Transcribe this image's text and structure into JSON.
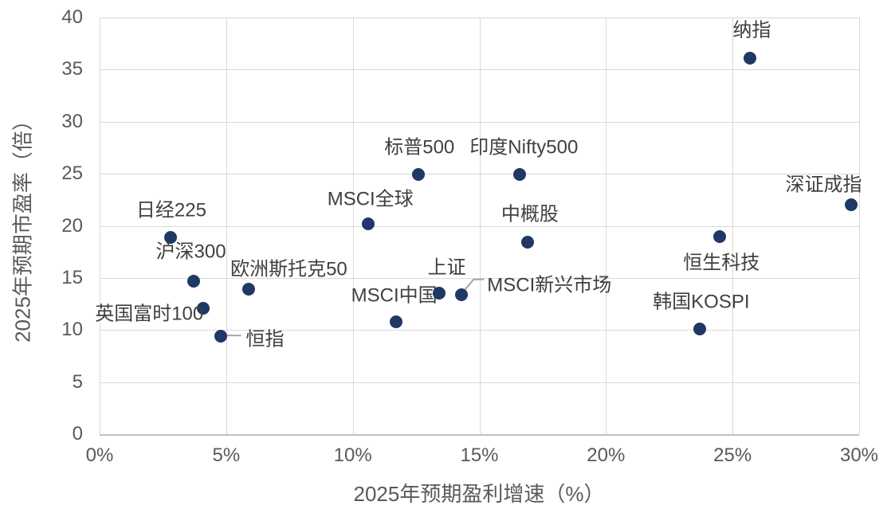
{
  "chart_data": {
    "type": "scatter",
    "title": "",
    "xlabel": "2025年预期盈利增速（%）",
    "ylabel": "2025年预期市盈率（倍）",
    "xlim": [
      0,
      30
    ],
    "ylim": [
      0,
      40
    ],
    "grid": true,
    "legend_position": "none",
    "marker_color": "#1f3864",
    "label_color": "#404040",
    "tick_color": "#595959",
    "grid_color": "#d9d9d9",
    "axis_line_color": "#bfbfbf",
    "leader_line_color": "#a6a6a6",
    "x_ticks": [
      {
        "v": 0,
        "label": "0%"
      },
      {
        "v": 5,
        "label": "5%"
      },
      {
        "v": 10,
        "label": "10%"
      },
      {
        "v": 15,
        "label": "15%"
      },
      {
        "v": 20,
        "label": "20%"
      },
      {
        "v": 25,
        "label": "25%"
      },
      {
        "v": 30,
        "label": "30%"
      }
    ],
    "y_ticks": [
      {
        "v": 0,
        "label": "0"
      },
      {
        "v": 5,
        "label": "5"
      },
      {
        "v": 10,
        "label": "10"
      },
      {
        "v": 15,
        "label": "15"
      },
      {
        "v": 20,
        "label": "20"
      },
      {
        "v": 25,
        "label": "25"
      },
      {
        "v": 30,
        "label": "30"
      },
      {
        "v": 35,
        "label": "35"
      },
      {
        "v": 40,
        "label": "40"
      }
    ],
    "points": [
      {
        "name": "日经225",
        "x": 2.8,
        "y": 18.9,
        "label_offset": [
          1,
          -37
        ]
      },
      {
        "name": "沪深300",
        "x": 3.7,
        "y": 14.7,
        "label_offset": [
          -3,
          -40
        ]
      },
      {
        "name": "英国富时100",
        "x": 4.1,
        "y": 12.1,
        "label_offset": [
          -68,
          4
        ]
      },
      {
        "name": "恒指",
        "x": 4.8,
        "y": 9.4,
        "label_offset": [
          55,
          1
        ],
        "leader": [
          [
            6,
            -1
          ],
          [
            25,
            -1
          ]
        ]
      },
      {
        "name": "欧洲斯托克50",
        "x": 5.9,
        "y": 13.9,
        "label_offset": [
          50,
          -28
        ]
      },
      {
        "name": "MSCI全球",
        "x": 10.6,
        "y": 20.2,
        "label_offset": [
          3,
          -34
        ]
      },
      {
        "name": "MSCI中国",
        "x": 11.7,
        "y": 10.8,
        "label_offset": [
          -2,
          -36
        ]
      },
      {
        "name": "标普500",
        "x": 12.6,
        "y": 24.9,
        "label_offset": [
          1,
          -37
        ]
      },
      {
        "name": "上证",
        "x": 13.4,
        "y": 13.5,
        "label_offset": [
          10,
          -35
        ]
      },
      {
        "name": "MSCI新兴市场",
        "x": 14.3,
        "y": 13.4,
        "label_offset": [
          110,
          -15
        ],
        "leader": [
          [
            4,
            -6
          ],
          [
            15,
            -19
          ],
          [
            28,
            -19
          ]
        ]
      },
      {
        "name": "印度Nifty500",
        "x": 16.6,
        "y": 24.9,
        "label_offset": [
          5,
          -37
        ]
      },
      {
        "name": "中概股",
        "x": 16.9,
        "y": 18.4,
        "label_offset": [
          3,
          -38
        ]
      },
      {
        "name": "韩国KOSPI",
        "x": 23.7,
        "y": 10.1,
        "label_offset": [
          2,
          -37
        ]
      },
      {
        "name": "恒生科技",
        "x": 24.5,
        "y": 19.0,
        "label_offset": [
          2,
          30
        ]
      },
      {
        "name": "纳指",
        "x": 25.7,
        "y": 36.1,
        "label_offset": [
          2,
          -38
        ]
      },
      {
        "name": "深证成指",
        "x": 29.7,
        "y": 22.0,
        "label_offset": [
          -35,
          -28
        ]
      }
    ]
  }
}
